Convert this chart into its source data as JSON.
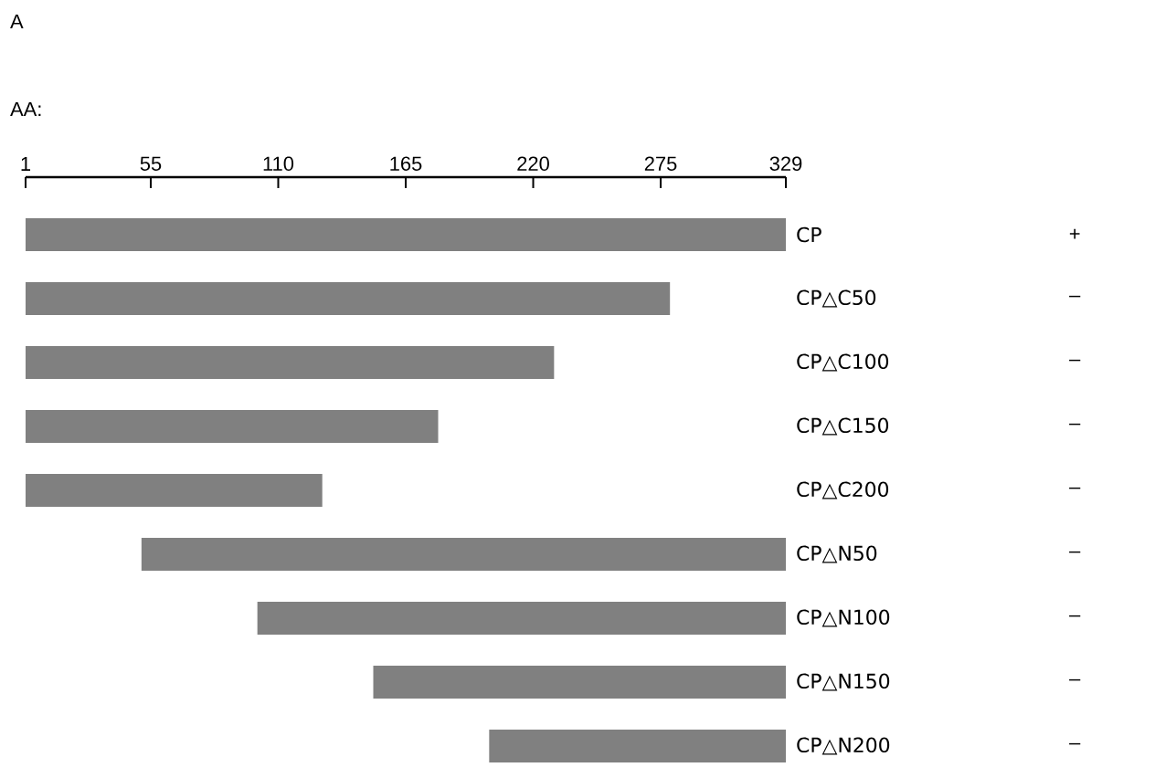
{
  "chart_data": {
    "type": "bar",
    "orientation": "horizontal",
    "title": "A",
    "xlabel": "AA:",
    "categories": [
      "CP",
      "CP△C50",
      "CP△C100",
      "CP△C150",
      "CP△C200",
      "CP△N50",
      "CP△N100",
      "CP△N150",
      "CP△N200"
    ],
    "base": [
      1,
      1,
      1,
      1,
      1,
      51,
      101,
      151,
      201
    ],
    "values": [
      328,
      278,
      228,
      178,
      128,
      278,
      228,
      178,
      128
    ],
    "color": "#808080",
    "xlim": [
      1,
      329
    ],
    "xticks": [
      1,
      55,
      110,
      165,
      220,
      275,
      329
    ],
    "value_labels": [
      "+",
      "–",
      "–",
      "–",
      "–",
      "–",
      "–",
      "–",
      "–"
    ],
    "grid": false
  }
}
